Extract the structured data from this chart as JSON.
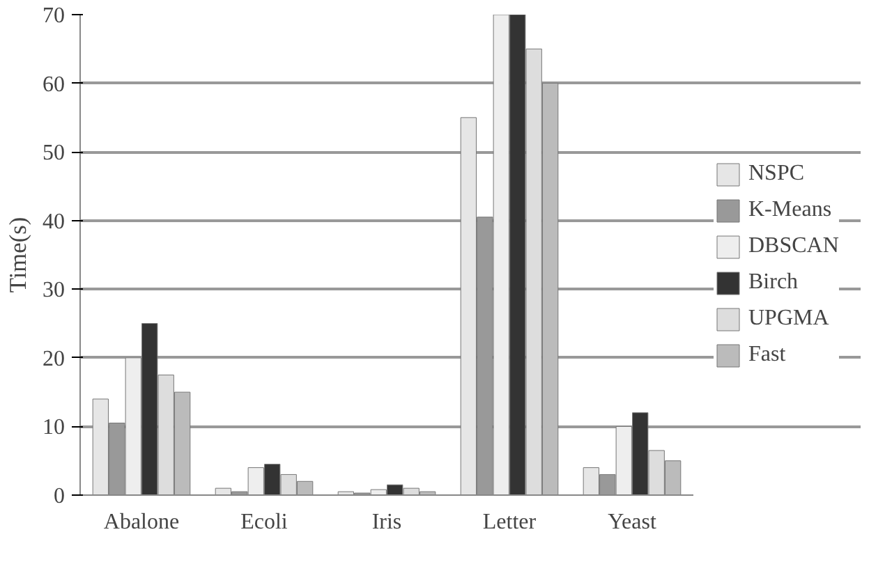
{
  "chart_data": {
    "type": "bar",
    "ylabel": "Time(s)",
    "categories": [
      "Abalone",
      "Ecoli",
      "Iris",
      "Letter",
      "Yeast"
    ],
    "series": [
      {
        "name": "NSPC",
        "color": "#e6e6e6",
        "values": [
          14,
          1,
          0.5,
          55,
          4
        ]
      },
      {
        "name": "K-Means",
        "color": "#999999",
        "values": [
          10.5,
          0.5,
          0.3,
          40.5,
          3
        ]
      },
      {
        "name": "DBSCAN",
        "color": "#eeeeee",
        "values": [
          20,
          4,
          0.8,
          70,
          10
        ]
      },
      {
        "name": "Birch",
        "color": "#333333",
        "values": [
          25,
          4.5,
          1.5,
          70,
          12
        ]
      },
      {
        "name": "UPGMA",
        "color": "#dddddd",
        "values": [
          17.5,
          3,
          1,
          65,
          6.5
        ]
      },
      {
        "name": "Fast",
        "color": "#bbbbbb",
        "values": [
          15,
          2,
          0.5,
          60,
          5
        ]
      }
    ],
    "ylim": [
      0,
      70
    ],
    "yticks": [
      0,
      10,
      20,
      30,
      40,
      50,
      60,
      70
    ],
    "grid": "y",
    "legend": "right"
  }
}
